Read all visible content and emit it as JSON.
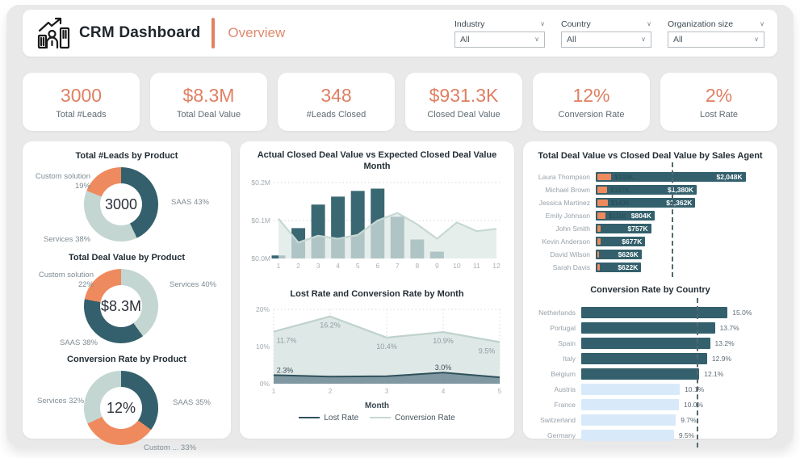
{
  "header": {
    "app_title": "CRM Dashboard",
    "page_title": "Overview"
  },
  "filters": [
    {
      "label": "Industry",
      "value": "All"
    },
    {
      "label": "Country",
      "value": "All"
    },
    {
      "label": "Organization size",
      "value": "All"
    }
  ],
  "kpis": [
    {
      "value": "3000",
      "label": "Total #Leads"
    },
    {
      "value": "$8.3M",
      "label": "Total Deal Value"
    },
    {
      "value": "348",
      "label": "#Leads Closed"
    },
    {
      "value": "$931.3K",
      "label": "Closed Deal Value"
    },
    {
      "value": "12%",
      "label": "Conversion Rate"
    },
    {
      "value": "2%",
      "label": "Lost Rate"
    }
  ],
  "colors": {
    "accent_orange": "#DF7F62",
    "teal_dark": "#33606C",
    "sage_light": "#C3D6D2",
    "slice_orange": "#EF8A5E",
    "bar_teal": "#3A6872",
    "area_fill": "#DCE7E5",
    "area_line": "#C6D8D4",
    "lost_fill": "#6A8690",
    "lost_line": "#2F515C",
    "country_blue": "#D8E9FA",
    "panel_gray": "#E9E9E9",
    "title_text": "#232E36",
    "label_gray": "#7E8B93"
  },
  "chart_data": [
    {
      "id": "leads_by_product",
      "type": "pie",
      "title": "Total #Leads by Product",
      "center": "3000",
      "slices": [
        {
          "name": "SAAS",
          "pct": 43,
          "color_key": "teal_dark",
          "label": "SAAS 43%"
        },
        {
          "name": "Services",
          "pct": 38,
          "color_key": "sage_light",
          "label": "Services 38%"
        },
        {
          "name": "Custom solution",
          "pct": 19,
          "color_key": "slice_orange",
          "label": "Custom solution 19%"
        }
      ]
    },
    {
      "id": "deal_value_by_product",
      "type": "pie",
      "title": "Total Deal Value by Product",
      "center": "$8.3M",
      "slices": [
        {
          "name": "Services",
          "pct": 40,
          "color_key": "sage_light",
          "label": "Services 40%"
        },
        {
          "name": "SAAS",
          "pct": 38,
          "color_key": "teal_dark",
          "label": "SAAS 38%"
        },
        {
          "name": "Custom solution",
          "pct": 22,
          "color_key": "slice_orange",
          "label": "Custom solution 22%"
        }
      ]
    },
    {
      "id": "conversion_by_product",
      "type": "pie",
      "title": "Conversion Rate by Product",
      "center": "12%",
      "slices": [
        {
          "name": "SAAS",
          "pct": 35,
          "color_key": "teal_dark",
          "label": "SAAS 35%"
        },
        {
          "name": "Custom solution",
          "pct": 33,
          "color_key": "slice_orange",
          "label": "Custom ... 33%"
        },
        {
          "name": "Services",
          "pct": 32,
          "color_key": "sage_light",
          "label": "Services 32%"
        }
      ]
    },
    {
      "id": "actual_vs_expected",
      "type": "combo-bar-area",
      "title": "Actual Closed Deal Value vs Expected Closed Deal Value Month",
      "x": [
        "1",
        "2",
        "3",
        "4",
        "5",
        "6",
        "7",
        "8",
        "9",
        "10",
        "11",
        "12"
      ],
      "series": [
        {
          "name": "Actual Closed Deal Value",
          "type": "bar",
          "values_m": [
            0.008,
            0.08,
            0.142,
            0.163,
            0.178,
            0.184,
            0.11,
            0.05,
            0.018,
            0,
            0,
            0
          ]
        },
        {
          "name": "Expected Closed Deal Value",
          "type": "area",
          "values_m": [
            0.105,
            0.042,
            0.06,
            0.052,
            0.062,
            0.1,
            0.12,
            0.09,
            0.052,
            0.095,
            0.072,
            0.078
          ]
        }
      ],
      "yticks": [
        {
          "v": 0,
          "label": "$0.0M"
        },
        {
          "v": 0.1,
          "label": "$0.1M"
        },
        {
          "v": 0.2,
          "label": "$0.2M"
        }
      ],
      "ymax": 0.2
    },
    {
      "id": "rates_by_month",
      "type": "area-stacked",
      "title": "Lost Rate and Conversion Rate by Month",
      "x": [
        "1",
        "2",
        "3",
        "4",
        "5"
      ],
      "xlabel": "Month",
      "series": [
        {
          "name": "Lost Rate",
          "values_pct": [
            2.3,
            1.9,
            2.0,
            3.0,
            1.7
          ],
          "labels": [
            "2.3%",
            "",
            "",
            "3.0%",
            ""
          ]
        },
        {
          "name": "Conversion Rate",
          "values_pct": [
            11.7,
            16.2,
            10.4,
            10.9,
            9.5
          ],
          "labels": [
            "11.7%",
            "16.2%",
            "10.4%",
            "10.9%",
            "9.5%"
          ]
        }
      ],
      "legend": [
        "Lost Rate",
        "Conversion Rate"
      ],
      "yticks": [
        {
          "v": 0,
          "label": "0%"
        },
        {
          "v": 10,
          "label": "10%"
        },
        {
          "v": 20,
          "label": "20%"
        }
      ],
      "ymax": 20
    },
    {
      "id": "deal_value_by_agent",
      "type": "bar-h",
      "title": "Total Deal Value vs Closed Deal Value by Sales Agent",
      "rows": [
        {
          "name": "Laura Thompson",
          "total_k": 2048,
          "total_label": "$2,048K",
          "closed_k": 193
        },
        {
          "name": "Michael Brown",
          "total_k": 1380,
          "total_label": "$1,380K",
          "closed_k": 137
        },
        {
          "name": "Jessica Martinez",
          "total_k": 1362,
          "total_label": "$1,362K",
          "closed_k": 140
        },
        {
          "name": "Emily Johnson",
          "total_k": 804,
          "total_label": "$804K",
          "closed_k": 111
        },
        {
          "name": "John Smith",
          "total_k": 757,
          "total_label": "$757K",
          "closed_k": 40
        },
        {
          "name": "Kevin Anderson",
          "total_k": 677,
          "total_label": "$677K",
          "closed_k": 45
        },
        {
          "name": "David Wilson",
          "total_k": 626,
          "total_label": "$626K",
          "closed_k": 18
        },
        {
          "name": "Sarah Davis",
          "total_k": 622,
          "total_label": "$622K",
          "closed_k": 35
        }
      ],
      "avg_line_k": 1034,
      "scale_max_k": 2350
    },
    {
      "id": "conversion_by_country",
      "type": "bar-h",
      "title": "Conversion Rate by Country",
      "rows": [
        {
          "name": "Netherlands",
          "value_pct": 15.0,
          "label": "15.0%",
          "above_avg": true
        },
        {
          "name": "Portugal",
          "value_pct": 13.7,
          "label": "13.7%",
          "above_avg": true
        },
        {
          "name": "Spain",
          "value_pct": 13.2,
          "label": "13.2%",
          "above_avg": true
        },
        {
          "name": "Italy",
          "value_pct": 12.9,
          "label": "12.9%",
          "above_avg": true
        },
        {
          "name": "Belgium",
          "value_pct": 12.1,
          "label": "12.1%",
          "above_avg": true
        },
        {
          "name": "Austria",
          "value_pct": 10.1,
          "label": "10.1%",
          "above_avg": false
        },
        {
          "name": "France",
          "value_pct": 10.0,
          "label": "10.0%",
          "above_avg": false
        },
        {
          "name": "Switzerland",
          "value_pct": 9.7,
          "label": "9.7%",
          "above_avg": false
        },
        {
          "name": "Germany",
          "value_pct": 9.5,
          "label": "9.5%",
          "above_avg": false
        }
      ],
      "avg_line_pct": 11.8,
      "scale_max_pct": 16.3
    }
  ]
}
